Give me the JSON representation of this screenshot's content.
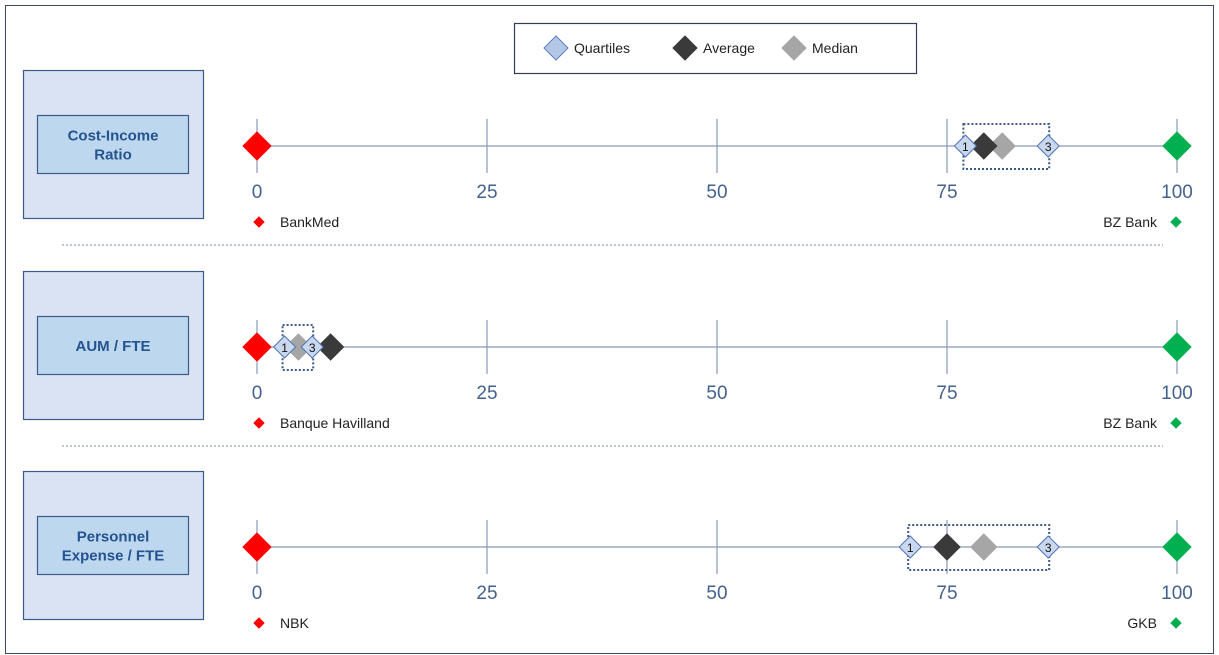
{
  "legend": [
    {
      "label": "Quartiles",
      "color": "#b4c7e7",
      "stroke": "#5b7fbf"
    },
    {
      "label": "Average",
      "color": "#3a3a3a",
      "stroke": "#3a3a3a"
    },
    {
      "label": "Median",
      "color": "#a6a6a6",
      "stroke": "#a6a6a6"
    }
  ],
  "colors": {
    "axis": "#8a99b3",
    "tick_text": "#44628f",
    "min_marker": "#ff0000",
    "max_marker": "#00b050",
    "box_fill": "#c9d8ee",
    "box_stroke": "#3c5a8a",
    "label_text": "#24538f"
  },
  "chart_data": [
    {
      "type": "scatter",
      "metric": [
        "Cost-Income",
        "Ratio"
      ],
      "ticks": [
        0,
        25,
        50,
        75,
        100
      ],
      "xlim": [
        0,
        100
      ],
      "min_bank": "BankMed",
      "max_bank": "BZ Bank",
      "min": 0,
      "max": 100,
      "q1": 77,
      "q3": 86,
      "average": 79,
      "median": 81,
      "quartile_labels": [
        "1",
        "3"
      ]
    },
    {
      "type": "scatter",
      "metric": [
        "AUM / FTE"
      ],
      "ticks": [
        0,
        25,
        50,
        75,
        100
      ],
      "xlim": [
        0,
        100
      ],
      "min_bank": "Banque Havilland",
      "max_bank": "BZ Bank",
      "min": 0,
      "max": 100,
      "q1": 3,
      "q3": 6,
      "average": 8,
      "median": 4.5,
      "quartile_labels": [
        "1",
        "3"
      ]
    },
    {
      "type": "scatter",
      "metric": [
        "Personnel",
        "Expense / FTE"
      ],
      "ticks": [
        0,
        25,
        50,
        75,
        100
      ],
      "xlim": [
        0,
        100
      ],
      "min_bank": "NBK",
      "max_bank": "GKB",
      "min": 0,
      "max": 100,
      "q1": 71,
      "q3": 86,
      "average": 75,
      "median": 79,
      "quartile_labels": [
        "1",
        "3"
      ]
    }
  ]
}
